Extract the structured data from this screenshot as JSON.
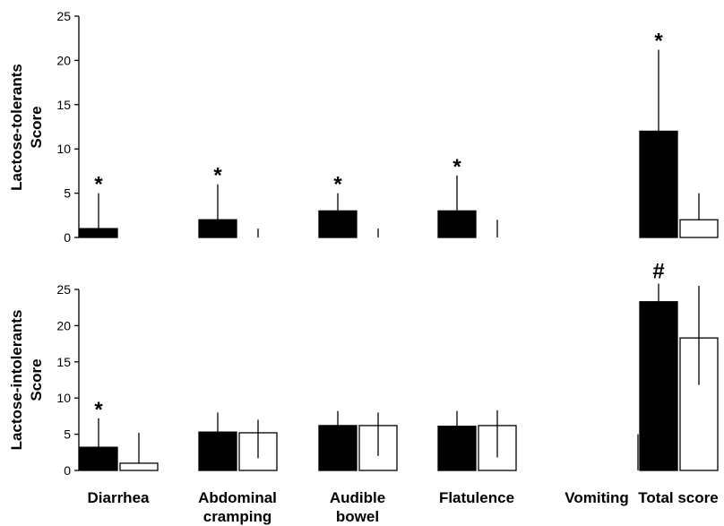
{
  "chart_data": [
    {
      "type": "bar",
      "panel": "top",
      "ylabel_line1": "Lactose-tolerants",
      "ylabel_line2": "Score",
      "ylim": [
        0,
        25
      ],
      "yticks": [
        0,
        5,
        10,
        15,
        20,
        25
      ],
      "categories": [
        "Diarrhea",
        "Abdominal cramping",
        "Audible bowel",
        "Flatulence",
        "Vomiting",
        "Total score"
      ],
      "series": [
        {
          "fill": "#000000",
          "values": [
            1,
            2,
            3,
            3,
            0,
            12
          ],
          "error_upper": [
            5,
            6,
            5,
            7,
            0,
            21.2
          ]
        },
        {
          "fill": "#ffffff",
          "values": [
            0,
            0,
            0,
            0,
            0,
            2
          ],
          "error_upper": [
            0,
            1,
            1,
            2,
            0,
            5
          ]
        }
      ],
      "annotations": [
        {
          "category_index": 0,
          "text": "*"
        },
        {
          "category_index": 1,
          "text": "*"
        },
        {
          "category_index": 2,
          "text": "*"
        },
        {
          "category_index": 3,
          "text": "*"
        },
        {
          "category_index": 5,
          "text": "*"
        }
      ]
    },
    {
      "type": "bar",
      "panel": "bottom",
      "ylabel_line1": "Lactose-intolerants",
      "ylabel_line2": "Score",
      "ylim": [
        0,
        25
      ],
      "yticks": [
        0,
        5,
        10,
        15,
        20,
        25
      ],
      "categories": [
        "Diarrhea",
        "Abdominal cramping",
        "Audible bowel",
        "Flatulence",
        "Vomiting",
        "Total score"
      ],
      "series": [
        {
          "fill": "#000000",
          "values": [
            3.2,
            5.3,
            6.2,
            6.1,
            0,
            23.3
          ],
          "error_upper": [
            7.2,
            8,
            8.2,
            8.2,
            0,
            25.8
          ]
        },
        {
          "fill": "#ffffff",
          "values": [
            1,
            5.2,
            6.2,
            6.2,
            0,
            18.3
          ],
          "error_upper": [
            5.2,
            7,
            8,
            8.3,
            5,
            25.5
          ],
          "error_lower": [
            null,
            1.7,
            2,
            1.8,
            null,
            11.8
          ],
          "stub_at_right": [
            false,
            false,
            false,
            false,
            true,
            false
          ]
        }
      ],
      "annotations": [
        {
          "category_index": 0,
          "text": "*"
        },
        {
          "category_index": 5,
          "text": "#"
        }
      ]
    }
  ],
  "x_labels": [
    {
      "line1": "Diarrhea",
      "line2": ""
    },
    {
      "line1": "Abdominal",
      "line2": "cramping"
    },
    {
      "line1": "Audible",
      "line2": "bowel"
    },
    {
      "line1": "Flatulence",
      "line2": ""
    },
    {
      "line1": "Vomiting",
      "line2": ""
    },
    {
      "line1": "Total score",
      "line2": ""
    }
  ]
}
